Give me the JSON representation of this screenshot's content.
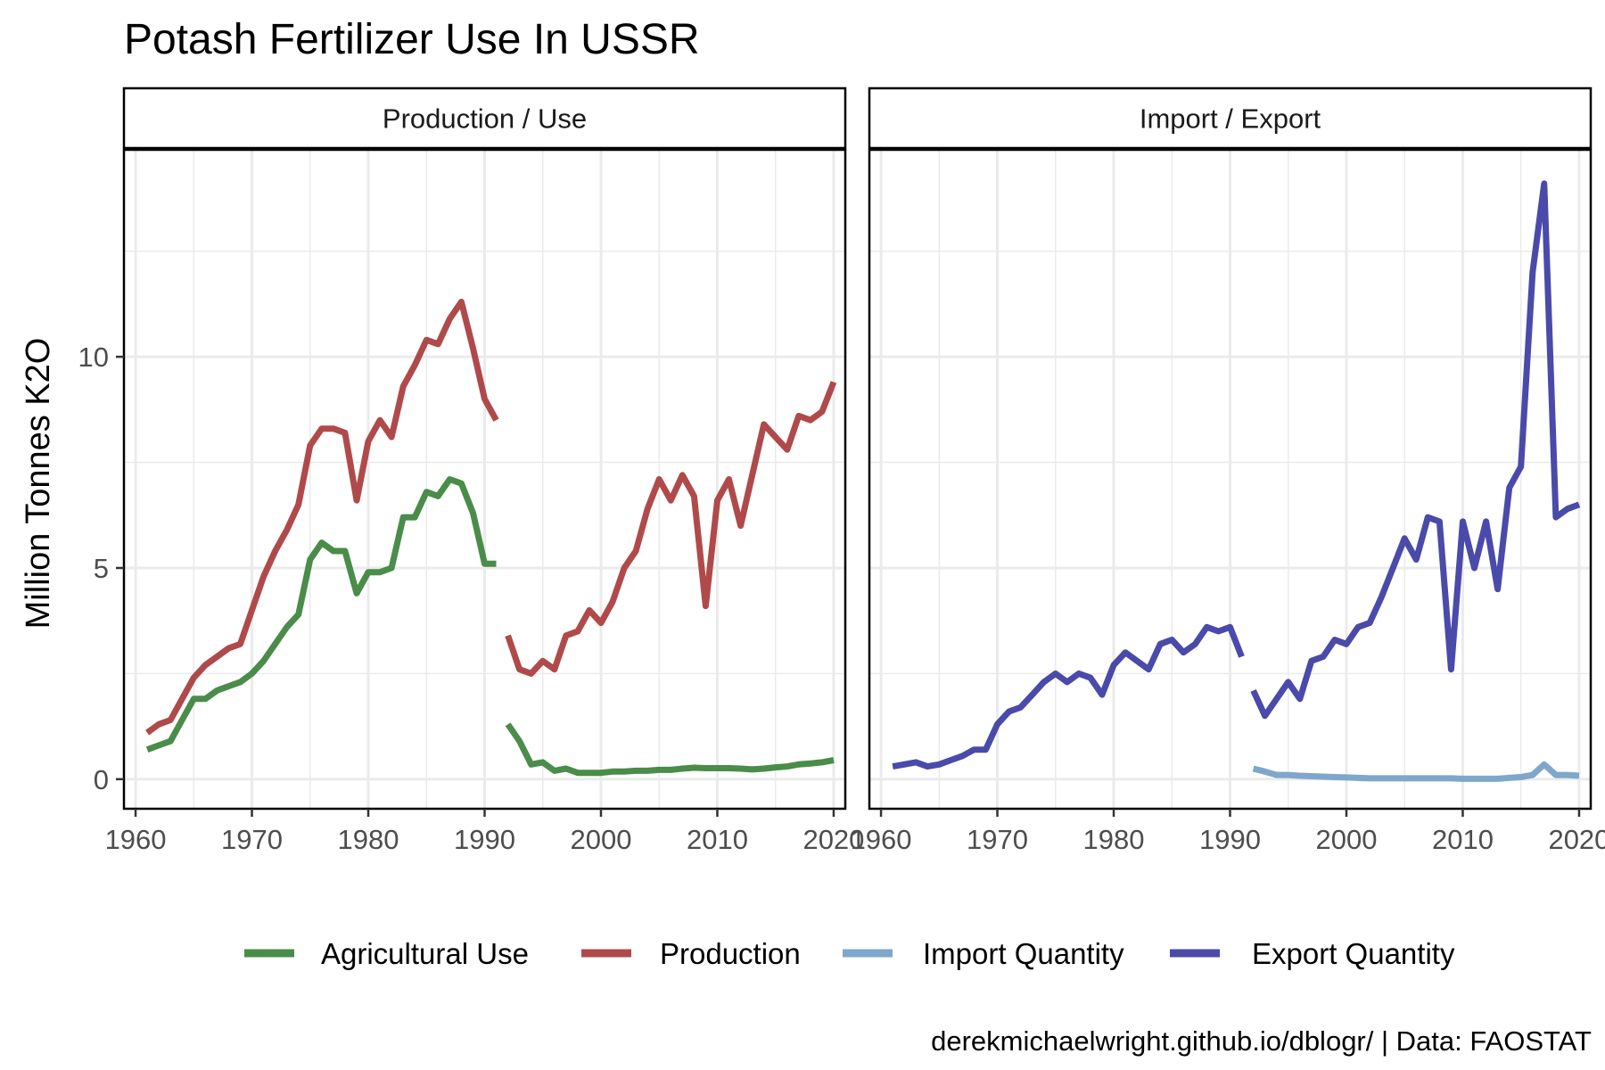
{
  "colors": {
    "agricultural_use": "#4a8c4a",
    "production": "#b04a4a",
    "import_quantity": "#7fa7cc",
    "export_quantity": "#4a4aaa",
    "grid": "#ebebeb",
    "panel_border": "#000000"
  },
  "chart_data": {
    "type": "line",
    "title": "Potash Fertilizer Use In USSR",
    "ylabel": "Million Tonnes K2O",
    "xlabel": "",
    "caption": "derekmichaelwright.github.io/dblogr/ | Data: FAOSTAT",
    "xlim": [
      1959,
      2021
    ],
    "ylim": [
      -0.7,
      14.9
    ],
    "x_ticks": [
      1960,
      1970,
      1980,
      1990,
      2000,
      2010,
      2020
    ],
    "y_ticks": [
      0,
      5,
      10
    ],
    "grid": true,
    "legend_position": "bottom",
    "legend": [
      "Agricultural Use",
      "Production",
      "Import Quantity",
      "Export Quantity"
    ],
    "panels": [
      {
        "label": "Production / Use",
        "series": [
          {
            "name": "Agricultural Use",
            "color_key": "agricultural_use",
            "segments": [
              {
                "x": [
                  1961,
                  1962,
                  1963,
                  1964,
                  1965,
                  1966,
                  1967,
                  1968,
                  1969,
                  1970,
                  1971,
                  1972,
                  1973,
                  1974,
                  1975,
                  1976,
                  1977,
                  1978,
                  1979,
                  1980,
                  1981,
                  1982,
                  1983,
                  1984,
                  1985,
                  1986,
                  1987,
                  1988,
                  1989,
                  1990,
                  1991
                ],
                "y": [
                  0.7,
                  0.8,
                  0.9,
                  1.4,
                  1.9,
                  1.9,
                  2.1,
                  2.2,
                  2.3,
                  2.5,
                  2.8,
                  3.2,
                  3.6,
                  3.9,
                  5.2,
                  5.6,
                  5.4,
                  5.4,
                  4.4,
                  4.9,
                  4.9,
                  5.0,
                  6.2,
                  6.2,
                  6.8,
                  6.7,
                  7.1,
                  7.0,
                  6.3,
                  5.1,
                  5.1
                ]
              },
              {
                "x": [
                  1992,
                  1993,
                  1994,
                  1995,
                  1996,
                  1997,
                  1998,
                  1999,
                  2000,
                  2001,
                  2002,
                  2003,
                  2004,
                  2005,
                  2006,
                  2007,
                  2008,
                  2009,
                  2010,
                  2011,
                  2012,
                  2013,
                  2014,
                  2015,
                  2016,
                  2017,
                  2018,
                  2019,
                  2020
                ],
                "y": [
                  1.3,
                  0.9,
                  0.35,
                  0.4,
                  0.2,
                  0.25,
                  0.15,
                  0.15,
                  0.15,
                  0.18,
                  0.18,
                  0.2,
                  0.2,
                  0.22,
                  0.22,
                  0.25,
                  0.27,
                  0.26,
                  0.26,
                  0.26,
                  0.25,
                  0.23,
                  0.25,
                  0.28,
                  0.3,
                  0.35,
                  0.37,
                  0.4,
                  0.45
                ]
              }
            ]
          },
          {
            "name": "Production",
            "color_key": "production",
            "segments": [
              {
                "x": [
                  1961,
                  1962,
                  1963,
                  1964,
                  1965,
                  1966,
                  1967,
                  1968,
                  1969,
                  1970,
                  1971,
                  1972,
                  1973,
                  1974,
                  1975,
                  1976,
                  1977,
                  1978,
                  1979,
                  1980,
                  1981,
                  1982,
                  1983,
                  1984,
                  1985,
                  1986,
                  1987,
                  1988,
                  1989,
                  1990,
                  1991
                ],
                "y": [
                  1.1,
                  1.3,
                  1.4,
                  1.9,
                  2.4,
                  2.7,
                  2.9,
                  3.1,
                  3.2,
                  4.0,
                  4.8,
                  5.4,
                  5.9,
                  6.5,
                  7.9,
                  8.3,
                  8.3,
                  8.2,
                  6.6,
                  8.0,
                  8.5,
                  8.1,
                  9.3,
                  9.8,
                  10.4,
                  10.3,
                  10.9,
                  11.3,
                  10.2,
                  9.0,
                  8.5
                ]
              },
              {
                "x": [
                  1992,
                  1993,
                  1994,
                  1995,
                  1996,
                  1997,
                  1998,
                  1999,
                  2000,
                  2001,
                  2002,
                  2003,
                  2004,
                  2005,
                  2006,
                  2007,
                  2008,
                  2009,
                  2010,
                  2011,
                  2012,
                  2013,
                  2014,
                  2015,
                  2016,
                  2017,
                  2018,
                  2019,
                  2020
                ],
                "y": [
                  3.4,
                  2.6,
                  2.5,
                  2.8,
                  2.6,
                  3.4,
                  3.5,
                  4.0,
                  3.7,
                  4.2,
                  5.0,
                  5.4,
                  6.4,
                  7.1,
                  6.6,
                  7.2,
                  6.7,
                  4.1,
                  6.6,
                  7.1,
                  6.0,
                  7.2,
                  8.4,
                  8.1,
                  7.8,
                  8.6,
                  8.5,
                  8.7,
                  9.4
                ]
              }
            ]
          }
        ]
      },
      {
        "label": "Import / Export",
        "series": [
          {
            "name": "Import Quantity",
            "color_key": "import_quantity",
            "segments": [
              {
                "x": [
                  1992,
                  1993,
                  1994,
                  1995,
                  1996,
                  1997,
                  1998,
                  1999,
                  2000,
                  2001,
                  2002,
                  2003,
                  2004,
                  2005,
                  2006,
                  2007,
                  2008,
                  2009,
                  2010,
                  2011,
                  2012,
                  2013,
                  2014,
                  2015,
                  2016,
                  2017,
                  2018,
                  2019,
                  2020
                ],
                "y": [
                  0.25,
                  0.18,
                  0.1,
                  0.1,
                  0.08,
                  0.07,
                  0.06,
                  0.05,
                  0.04,
                  0.03,
                  0.02,
                  0.02,
                  0.02,
                  0.02,
                  0.02,
                  0.02,
                  0.02,
                  0.02,
                  0.01,
                  0.01,
                  0.01,
                  0.01,
                  0.03,
                  0.05,
                  0.1,
                  0.35,
                  0.1,
                  0.1,
                  0.08
                ]
              }
            ]
          },
          {
            "name": "Export Quantity",
            "color_key": "export_quantity",
            "segments": [
              {
                "x": [
                  1961,
                  1962,
                  1963,
                  1964,
                  1965,
                  1966,
                  1967,
                  1968,
                  1969,
                  1970,
                  1971,
                  1972,
                  1973,
                  1974,
                  1975,
                  1976,
                  1977,
                  1978,
                  1979,
                  1980,
                  1981,
                  1982,
                  1983,
                  1984,
                  1985,
                  1986,
                  1987,
                  1988,
                  1989,
                  1990,
                  1991
                ],
                "y": [
                  0.3,
                  0.35,
                  0.4,
                  0.3,
                  0.35,
                  0.45,
                  0.55,
                  0.7,
                  0.7,
                  1.3,
                  1.6,
                  1.7,
                  2.0,
                  2.3,
                  2.5,
                  2.3,
                  2.5,
                  2.4,
                  2.0,
                  2.7,
                  3.0,
                  2.8,
                  2.6,
                  3.2,
                  3.3,
                  3.0,
                  3.2,
                  3.6,
                  3.5,
                  3.6,
                  2.9
                ]
              },
              {
                "x": [
                  1992,
                  1993,
                  1994,
                  1995,
                  1996,
                  1997,
                  1998,
                  1999,
                  2000,
                  2001,
                  2002,
                  2003,
                  2004,
                  2005,
                  2006,
                  2007,
                  2008,
                  2009,
                  2010,
                  2011,
                  2012,
                  2013,
                  2014,
                  2015,
                  2016,
                  2017,
                  2018,
                  2019,
                  2020
                ],
                "y": [
                  2.1,
                  1.5,
                  1.9,
                  2.3,
                  1.9,
                  2.8,
                  2.9,
                  3.3,
                  3.2,
                  3.6,
                  3.7,
                  4.3,
                  5.0,
                  5.7,
                  5.2,
                  6.2,
                  6.1,
                  2.6,
                  6.1,
                  5.0,
                  6.1,
                  4.5,
                  6.9,
                  7.4,
                  12.0,
                  14.1,
                  6.2,
                  6.4,
                  6.5
                ]
              }
            ]
          }
        ]
      }
    ]
  }
}
